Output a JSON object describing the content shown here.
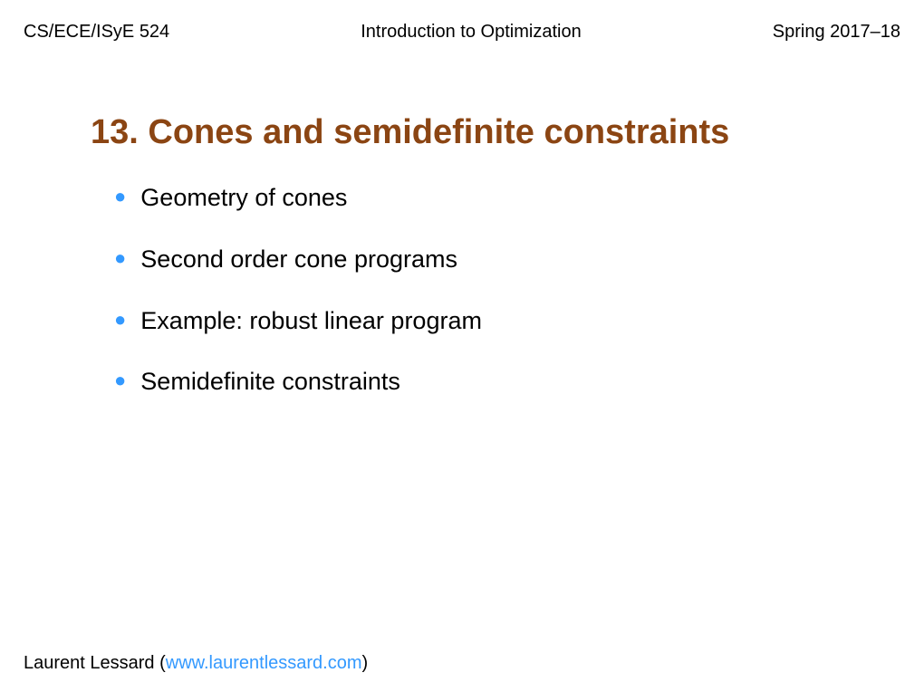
{
  "header": {
    "left": "CS/ECE/ISyE 524",
    "center": "Introduction to Optimization",
    "right": "Spring 2017–18"
  },
  "title": "13. Cones and semidefinite constraints",
  "bullets": [
    "Geometry of cones",
    "Second order cone programs",
    "Example: robust linear program",
    "Semidefinite constraints"
  ],
  "footer": {
    "author": "Laurent Lessard",
    "paren_open": " (",
    "link": "www.laurentlessard.com",
    "paren_close": ")"
  },
  "colors": {
    "title_color": "#8b4513",
    "bullet_color": "#3399ff",
    "link_color": "#3399ff",
    "text_color": "#000000",
    "background_color": "#ffffff"
  },
  "typography": {
    "header_fontsize": 20,
    "title_fontsize": 38,
    "bullet_fontsize": 27,
    "footer_fontsize": 20
  }
}
